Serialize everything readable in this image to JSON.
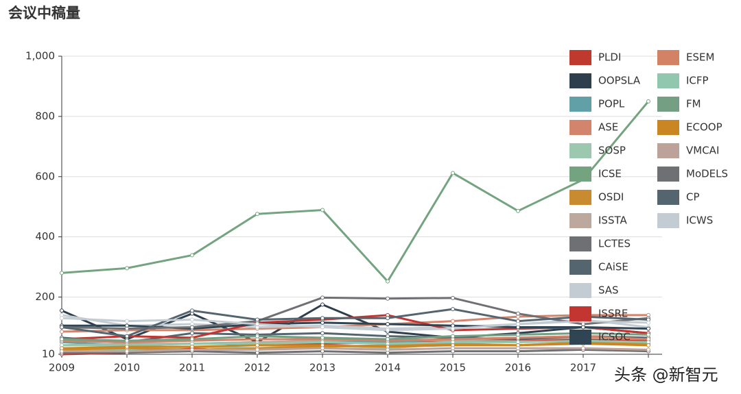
{
  "chart_data": {
    "type": "line",
    "title": "会议中稿量",
    "categories": [
      "2009",
      "2010",
      "2011",
      "2012",
      "2013",
      "2014",
      "2015",
      "2016",
      "2017",
      null
    ],
    "ylim": [
      10,
      1000
    ],
    "yticks": [
      10,
      200,
      400,
      600,
      800,
      {
        "value": 1000,
        "label": "1,000"
      }
    ],
    "grid": true,
    "legend": "top-right",
    "series": [
      {
        "name": "PLDI",
        "color": "#c0392f",
        "values": [
          10,
          15,
          30,
          45,
          45,
          50,
          55,
          58,
          60,
          55
        ]
      },
      {
        "name": "OOPSLA",
        "color": "#2f3e4d",
        "values": [
          155,
          60,
          145,
          50,
          175,
          85,
          65,
          80,
          100,
          80
        ]
      },
      {
        "name": "POPL",
        "color": "#62a0a8",
        "values": [
          50,
          40,
          45,
          50,
          55,
          50,
          60,
          65,
          70,
          60
        ]
      },
      {
        "name": "ASE",
        "color": "#d3846c",
        "values": [
          85,
          90,
          90,
          95,
          100,
          110,
          120,
          135,
          140,
          140
        ]
      },
      {
        "name": "SOSP",
        "color": "#9dc8b0",
        "values": [
          30,
          25,
          35,
          30,
          40,
          30,
          45,
          40,
          50,
          45
        ]
      },
      {
        "name": "ICSE",
        "color": "#74a37f",
        "values": [
          280,
          296,
          339,
          476,
          489,
          252,
          612,
          486,
          590,
          850
        ]
      },
      {
        "name": "OSDI",
        "color": "#c98b2f",
        "values": [
          25,
          30,
          25,
          30,
          35,
          40,
          45,
          40,
          50,
          45
        ]
      },
      {
        "name": "ISSTA",
        "color": "#bca89c",
        "values": [
          40,
          45,
          45,
          50,
          55,
          60,
          55,
          60,
          65,
          60
        ]
      },
      {
        "name": "LCTES",
        "color": "#6e7074",
        "values": [
          15,
          15,
          20,
          15,
          20,
          15,
          20,
          20,
          25,
          20
        ]
      },
      {
        "name": "CAiSE",
        "color": "#546570",
        "values": [
          65,
          50,
          80,
          75,
          80,
          70,
          65,
          60,
          70,
          65
        ]
      },
      {
        "name": "SAS",
        "color": "#c4ccd3",
        "values": [
          140,
          105,
          110,
          100,
          105,
          95,
          100,
          110,
          125,
          100
        ]
      },
      {
        "name": "ISSRE",
        "color": "#c23531",
        "values": [
          60,
          70,
          65,
          115,
          125,
          140,
          90,
          95,
          100,
          80
        ]
      },
      {
        "name": "ICSOC",
        "color": "#2f4554",
        "values": [
          105,
          105,
          95,
          110,
          115,
          110,
          105,
          100,
          100,
          95
        ]
      },
      {
        "name": "ESEM",
        "color": "#d48265",
        "values": [
          55,
          50,
          55,
          60,
          60,
          55,
          60,
          65,
          70,
          60
        ]
      },
      {
        "name": "ICFP",
        "color": "#91c7ae",
        "values": [
          40,
          40,
          45,
          45,
          50,
          45,
          50,
          50,
          55,
          50
        ]
      },
      {
        "name": "FM",
        "color": "#749f83",
        "values": [
          60,
          55,
          60,
          70,
          65,
          60,
          70,
          75,
          80,
          75
        ]
      },
      {
        "name": "ECOOP",
        "color": "#ca8622",
        "values": [
          30,
          35,
          35,
          40,
          40,
          35,
          40,
          40,
          45,
          40
        ]
      },
      {
        "name": "VMCAI",
        "color": "#bda29a",
        "values": [
          20,
          20,
          25,
          25,
          30,
          25,
          30,
          30,
          30,
          25
        ]
      },
      {
        "name": "MoDELS",
        "color": "#6e7074",
        "values": [
          100,
          95,
          100,
          120,
          198,
          195,
          197,
          145,
          110,
          130
        ]
      },
      {
        "name": "CP",
        "color": "#546570",
        "values": [
          100,
          70,
          155,
          125,
          130,
          130,
          160,
          120,
          135,
          125
        ]
      },
      {
        "name": "ICWS",
        "color": "#c4ccd3",
        "values": [
          130,
          120,
          125,
          110,
          100,
          90,
          95,
          110,
          120,
          115
        ]
      }
    ],
    "watermark": "头条 @新智元"
  }
}
